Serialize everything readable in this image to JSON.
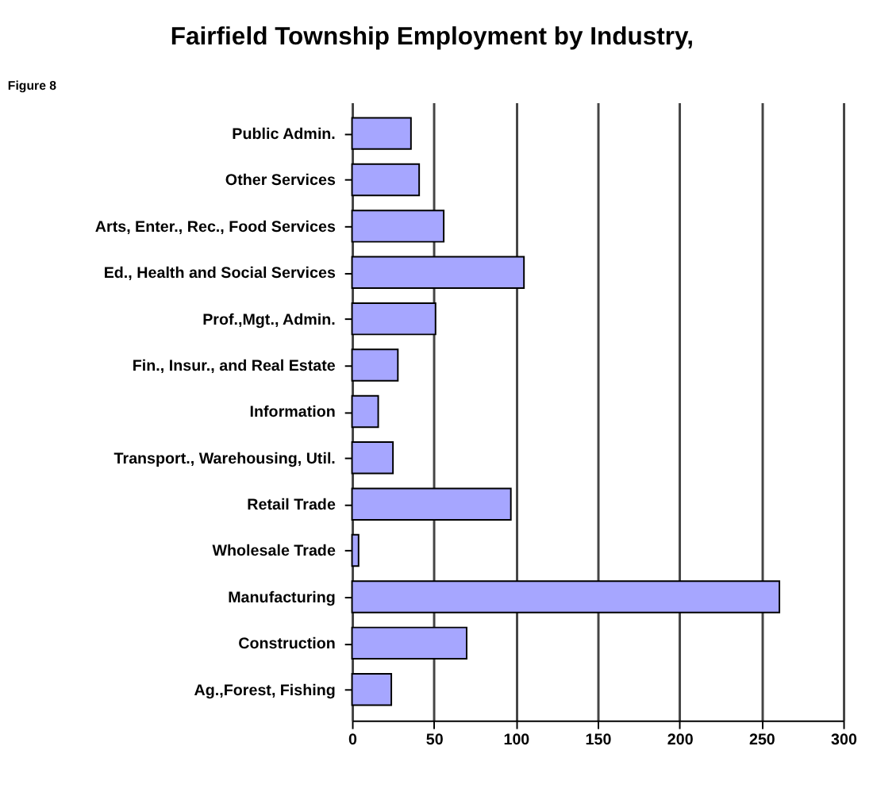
{
  "chart_data": {
    "type": "bar",
    "orientation": "horizontal",
    "title": "Fairfield Township Employment by Industry,",
    "annotations": [
      "Figure 8"
    ],
    "categories": [
      "Public Admin.",
      "Other Services",
      "Arts, Enter., Rec., Food Services",
      "Ed., Health and Social Services",
      "Prof.,Mgt., Admin.",
      "Fin., Insur., and Real Estate",
      "Information",
      "Transport., Warehousing, Util.",
      "Retail Trade",
      "Wholesale Trade",
      "Manufacturing",
      "Construction",
      "Ag.,Forest, Fishing"
    ],
    "values": [
      36,
      41,
      56,
      105,
      51,
      28,
      16,
      25,
      97,
      4,
      261,
      70,
      24
    ],
    "color": "#a6a6ff",
    "xlim": [
      0,
      300
    ],
    "xticks": [
      0,
      50,
      100,
      150,
      200,
      250,
      300
    ],
    "grid": "x"
  }
}
